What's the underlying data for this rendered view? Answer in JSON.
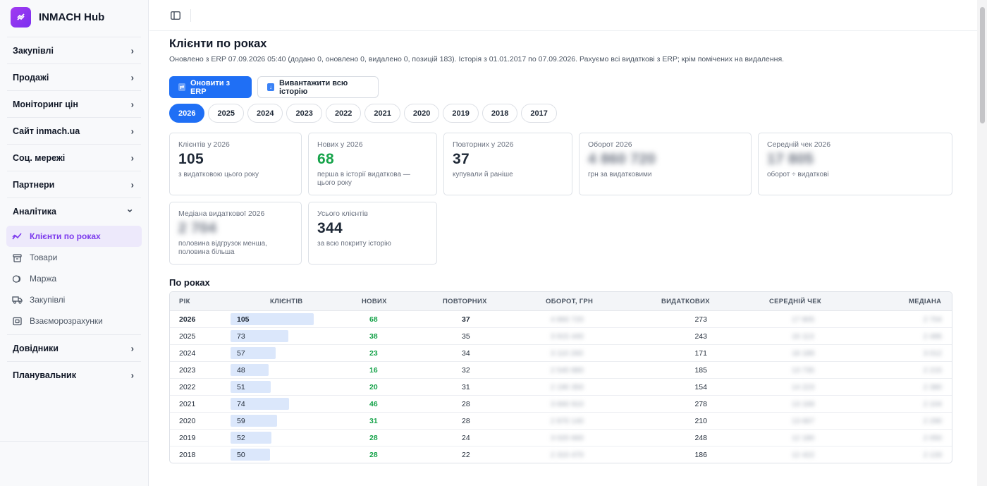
{
  "app": {
    "name": "INMACH Hub",
    "logo_glyph": "≈"
  },
  "sidebar": {
    "items": [
      {
        "label": "Закупівлі",
        "expanded": false
      },
      {
        "label": "Продажі",
        "expanded": false
      },
      {
        "label": "Моніторинг цін",
        "expanded": false
      },
      {
        "label": "Сайт inmach.ua",
        "expanded": false
      },
      {
        "label": "Соц. мережі",
        "expanded": false
      },
      {
        "label": "Партнери",
        "expanded": false
      },
      {
        "label": "Аналітика",
        "expanded": true
      },
      {
        "label": "Довідники",
        "expanded": false
      },
      {
        "label": "Планувальник",
        "expanded": false
      }
    ],
    "analytics_sub": [
      {
        "label": "Клієнти по роках",
        "icon": "trend-icon",
        "active": true
      },
      {
        "label": "Товари",
        "icon": "box-icon",
        "active": false
      },
      {
        "label": "Маржа",
        "icon": "coins-icon",
        "active": false
      },
      {
        "label": "Закупівлі",
        "icon": "truck-icon",
        "active": false
      },
      {
        "label": "Взаєморозрахунки",
        "icon": "ledger-icon",
        "active": false
      }
    ],
    "chevron_right": "›",
    "chevron_down": "⌄"
  },
  "page": {
    "title": "Клієнти по роках",
    "subtitle": "Оновлено з ERP 07.09.2026 05:40 (додано 0, оновлено 0, видалено 0, позицій 183). Історія з 01.01.2017 по 07.09.2026. Рахуємо всі видаткові з ERP; крім помічених на видалення.",
    "btn_refresh": "Оновити з ERP",
    "btn_download": "Вивантажити всю історію",
    "years": [
      "2026",
      "2025",
      "2024",
      "2023",
      "2022",
      "2021",
      "2020",
      "2019",
      "2018",
      "2017"
    ],
    "active_year": "2026"
  },
  "cards": {
    "clients": {
      "label": "Клієнтів у 2026",
      "value": "105",
      "desc": "з видатковою цього року"
    },
    "new": {
      "label": "Нових у 2026",
      "value": "68",
      "desc": "перша в історії видаткова — цього року"
    },
    "repeat": {
      "label": "Повторних у 2026",
      "value": "37",
      "desc": "купували й раніше"
    },
    "turnover": {
      "label": "Оборот 2026",
      "value": "4 860 720",
      "desc": "грн за видатковими"
    },
    "avg_check": {
      "label": "Середній чек 2026",
      "value": "17 805",
      "desc": "оборот ÷ видаткові"
    },
    "median": {
      "label": "Медіана видаткової 2026",
      "value": "2 704",
      "desc": "половина відгрузок менша, половина більша"
    },
    "total": {
      "label": "Усього клієнтів",
      "value": "344",
      "desc": "за всю покриту історію"
    }
  },
  "table": {
    "section_title": "По роках",
    "headers": {
      "year": "РІК",
      "clients": "КЛІЄНТІВ",
      "new": "НОВИХ",
      "repeat": "ПОВТОРНИХ",
      "turnover": "ОБОРОТ, ГРН",
      "invoices": "ВИДАТКОВИХ",
      "avg": "СЕРЕДНІЙ ЧЕК",
      "median": "МЕДІАНА"
    },
    "rows": [
      {
        "year": "2026",
        "clients": 105,
        "new": 68,
        "repeat": 37,
        "turnover": "4 860 720",
        "invoices": 273,
        "avg": "17 805",
        "median": "2 704"
      },
      {
        "year": "2025",
        "clients": 73,
        "new": 38,
        "repeat": 35,
        "turnover": "3 915 440",
        "invoices": 243,
        "avg": "16 113",
        "median": "2 486"
      },
      {
        "year": "2024",
        "clients": 57,
        "new": 23,
        "repeat": 34,
        "turnover": "3 110 260",
        "invoices": 171,
        "avg": "18 189",
        "median": "3 012"
      },
      {
        "year": "2023",
        "clients": 48,
        "new": 16,
        "repeat": 32,
        "turnover": "2 540 880",
        "invoices": 185,
        "avg": "13 735",
        "median": "2 215"
      },
      {
        "year": "2022",
        "clients": 51,
        "new": 20,
        "repeat": 31,
        "turnover": "2 190 350",
        "invoices": 154,
        "avg": "14 223",
        "median": "2 380"
      },
      {
        "year": "2021",
        "clients": 74,
        "new": 46,
        "repeat": 28,
        "turnover": "3 660 910",
        "invoices": 278,
        "avg": "13 169",
        "median": "2 104"
      },
      {
        "year": "2020",
        "clients": 59,
        "new": 31,
        "repeat": 28,
        "turnover": "2 870 140",
        "invoices": 210,
        "avg": "13 667",
        "median": "2 290"
      },
      {
        "year": "2019",
        "clients": 52,
        "new": 28,
        "repeat": 24,
        "turnover": "3 020 660",
        "invoices": 248,
        "avg": "12 180",
        "median": "2 050"
      },
      {
        "year": "2018",
        "clients": 50,
        "new": 28,
        "repeat": 22,
        "turnover": "2 310 470",
        "invoices": 186,
        "avg": "12 422",
        "median": "2 133"
      }
    ],
    "bar_max": 105
  },
  "colors": {
    "accent": "#1f6ff5",
    "brand": "#8b35f0",
    "green": "#16a34a",
    "bar": "#dbe7fb"
  }
}
